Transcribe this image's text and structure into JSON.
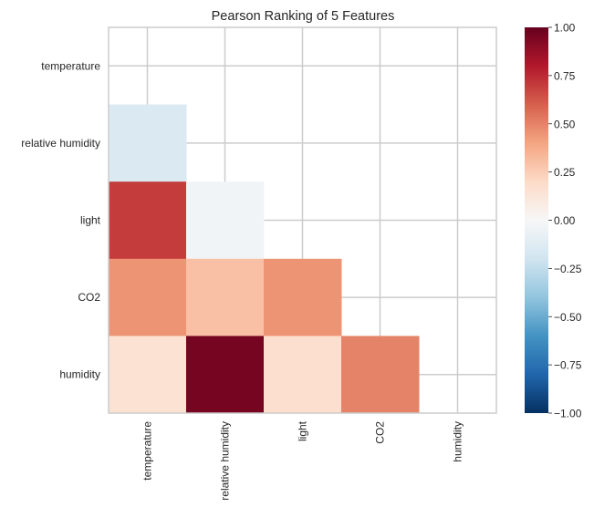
{
  "chart_data": {
    "type": "heatmap",
    "title": "Pearson Ranking of 5 Features",
    "row_labels": [
      "temperature",
      "relative humidity",
      "light",
      "CO2",
      "humidity"
    ],
    "col_labels": [
      "temperature",
      "relative humidity",
      "light",
      "CO2",
      "humidity"
    ],
    "matrix": [
      [
        null,
        null,
        null,
        null,
        null
      ],
      [
        -0.15,
        null,
        null,
        null,
        null
      ],
      [
        0.7,
        -0.03,
        null,
        null,
        null
      ],
      [
        0.45,
        0.3,
        0.45,
        null,
        null
      ],
      [
        0.15,
        0.96,
        0.17,
        0.5,
        null
      ]
    ],
    "mask": "upper triangle incl. diagonal",
    "colormap": "RdBu_r",
    "vlim": [
      -1,
      1
    ],
    "colorbar_ticks": [
      "1.00",
      "0.75",
      "0.50",
      "0.25",
      "0.00",
      "−0.25",
      "−0.50",
      "−0.75",
      "−1.00"
    ],
    "colorbar_tick_values": [
      1,
      0.75,
      0.5,
      0.25,
      0,
      -0.25,
      -0.5,
      -0.75,
      -1
    ],
    "grid": true,
    "colors": {
      "grid": "#cccccc",
      "text": "#262626"
    }
  }
}
